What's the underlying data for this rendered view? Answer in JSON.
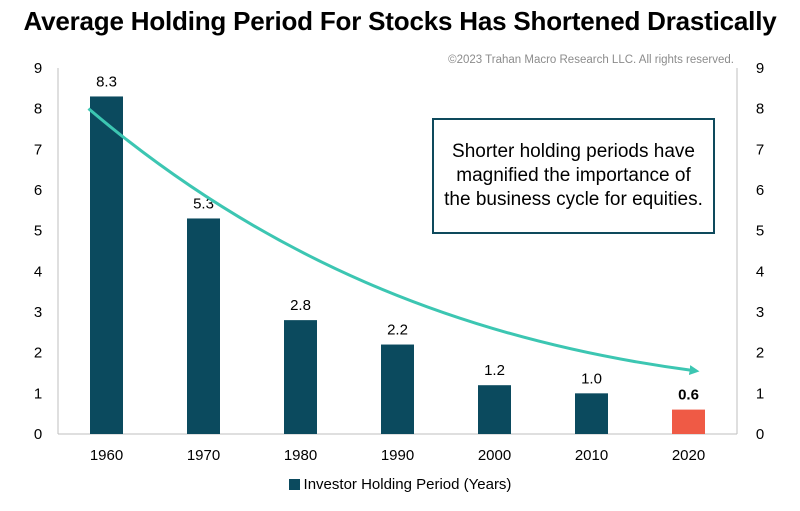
{
  "chart_data": {
    "type": "bar",
    "title": "Average Holding Period For Stocks Has Shortened Drastically",
    "copyright": "©2023 Trahan Macro Research LLC. All rights reserved.",
    "categories": [
      "1960",
      "1970",
      "1980",
      "1990",
      "2000",
      "2010",
      "2020"
    ],
    "values": [
      8.3,
      5.3,
      2.8,
      2.2,
      1.2,
      1.0,
      0.6
    ],
    "value_labels": [
      "8.3",
      "5.3",
      "2.8",
      "2.2",
      "1.2",
      "1.0",
      "0.6"
    ],
    "series_name": "Investor Holding Period (Years)",
    "ylim": [
      0,
      9
    ],
    "yticks": [
      "0",
      "1",
      "2",
      "3",
      "4",
      "5",
      "6",
      "7",
      "8",
      "9"
    ],
    "secondary_axis": true,
    "highlight_index": 6,
    "trend_arrow": {
      "from": [
        0,
        8.0
      ],
      "to": [
        6,
        1.55
      ]
    },
    "callout": "Shorter holding periods have magnified the importance of the business cycle for equities.",
    "legend_position": "bottom",
    "colors": {
      "bar": "#0b4a5e",
      "highlight": "#ef5a45",
      "trend": "#3cc6b2",
      "border": "#0e4a5c"
    }
  }
}
